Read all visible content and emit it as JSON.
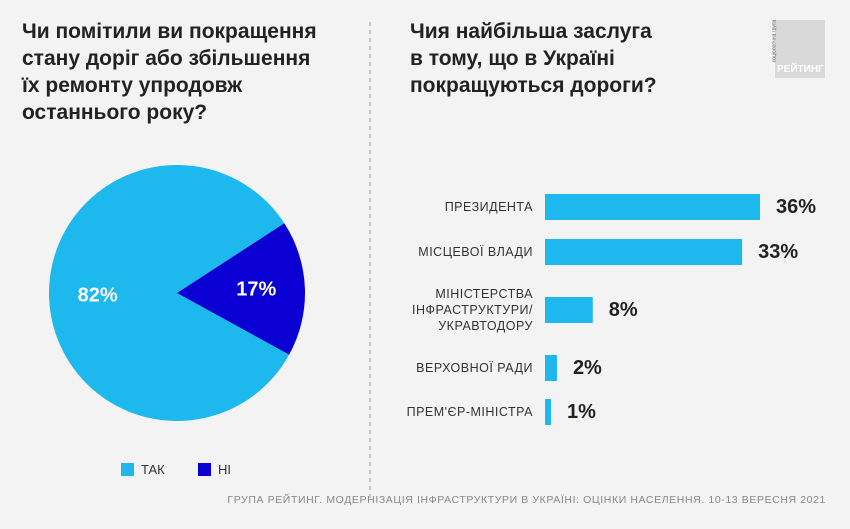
{
  "chart_data": [
    {
      "type": "pie",
      "title": "Чи помітили ви покращення\nстану доріг або збільшення\nїх ремонту упродовж\nостаннього року?",
      "categories": [
        "ТАК",
        "НІ"
      ],
      "values": [
        82,
        17
      ],
      "value_labels": [
        "82%",
        "17%"
      ],
      "colors": [
        "#1cb8ee",
        "#0a00d4"
      ]
    },
    {
      "type": "bar",
      "orientation": "horizontal",
      "title": "Чия найбільша заслуга\nв тому, що в Україні\nпокращуються дороги?",
      "categories": [
        "ПРЕЗИДЕНТА",
        "МІСЦЕВОЇ ВЛАДИ",
        "МІНІСТЕРСТВА\nІНФРАСТРУКТУРИ/\nУКРАВТОДОРУ",
        "ВЕРХОВНОЇ РАДИ",
        "ПРЕМ'ЄР-МІНІСТРА"
      ],
      "values": [
        36,
        33,
        8,
        2,
        1
      ],
      "value_labels": [
        "36%",
        "33%",
        "8%",
        "2%",
        "1%"
      ],
      "color": "#1cb8ee"
    }
  ],
  "logo": {
    "caption": "соціологічна група",
    "name": "РЕЙТИНГ"
  },
  "source": "ГРУПА РЕЙТИНГ. МОДЕРНІЗАЦІЯ ІНФРАСТРУКТУРИ В УКРАЇНІ: ОЦІНКИ НАСЕЛЕННЯ. 10-13 ВЕРЕСНЯ 2021"
}
